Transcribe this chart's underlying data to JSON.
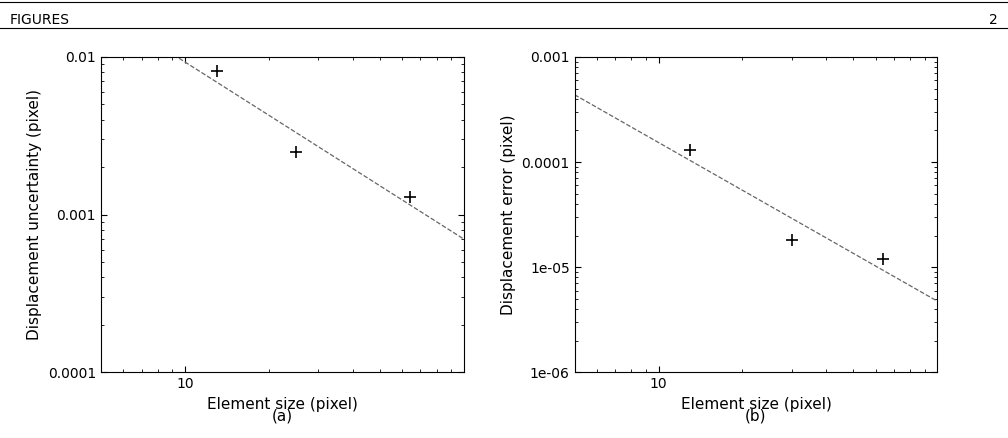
{
  "plot_a": {
    "x_data": [
      13,
      25,
      64
    ],
    "y_data": [
      0.0082,
      0.0025,
      0.0013
    ],
    "xlim": [
      5,
      100
    ],
    "ylim": [
      0.0001,
      0.01
    ],
    "xlabel": "Element size (pixel)",
    "ylabel": "Displacement uncertainty (pixel)",
    "label": "(a)"
  },
  "plot_b": {
    "x_data": [
      13,
      30,
      64
    ],
    "y_data": [
      0.00013,
      1.8e-05,
      1.2e-05
    ],
    "xlim": [
      5,
      100
    ],
    "ylim": [
      1e-06,
      0.001
    ],
    "xlabel": "Element size (pixel)",
    "ylabel": "Displacement error (pixel)",
    "label": "(b)"
  },
  "marker": "+",
  "markersize": 9,
  "markeredgewidth": 1.2,
  "line_style": "--",
  "line_color": "#666666",
  "marker_color": "#000000",
  "background_color": "#ffffff",
  "label_fontsize": 11,
  "tick_fontsize": 10,
  "header_text": "FIGURES",
  "header_fontsize": 10
}
